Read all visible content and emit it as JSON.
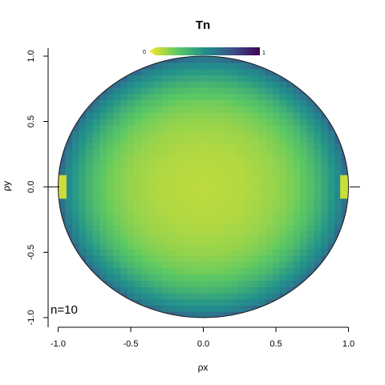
{
  "chart_data": {
    "type": "heatmap",
    "title": "Tn",
    "xlabel": "ρx",
    "ylabel": "ρy",
    "xlim": [
      -1.05,
      1.05
    ],
    "ylim": [
      -1.05,
      1.05
    ],
    "x_ticks": [
      "-1.0",
      "-0.5",
      "0.0",
      "0.5",
      "1.0"
    ],
    "y_ticks": [
      "-1.0",
      "-0.5",
      "0.0",
      "0.5",
      "1.0"
    ],
    "x_tick_values": [
      -1.0,
      -0.5,
      0.0,
      0.5,
      1.0
    ],
    "y_tick_values": [
      -1.0,
      -0.5,
      0.0,
      0.5,
      1.0
    ],
    "annotation": "n=10",
    "colorbar": {
      "labels": [
        "0",
        "1"
      ],
      "range": [
        0,
        1
      ],
      "colormap": "viridis (reversed: yellow at 0, purple at 1)",
      "placement": "top"
    },
    "grid": false,
    "radial_profile": {
      "r": [
        0.0,
        0.3,
        0.5,
        0.65,
        0.75,
        0.82,
        0.88,
        0.93,
        0.97,
        1.0
      ],
      "value": [
        0.1,
        0.12,
        0.16,
        0.22,
        0.3,
        0.38,
        0.46,
        0.52,
        0.58,
        0.68
      ]
    },
    "edge_patches": [
      {
        "x": -0.97,
        "y": 0.0,
        "value": 0.08
      },
      {
        "x": 0.97,
        "y": 0.0,
        "value": 0.08
      }
    ]
  }
}
